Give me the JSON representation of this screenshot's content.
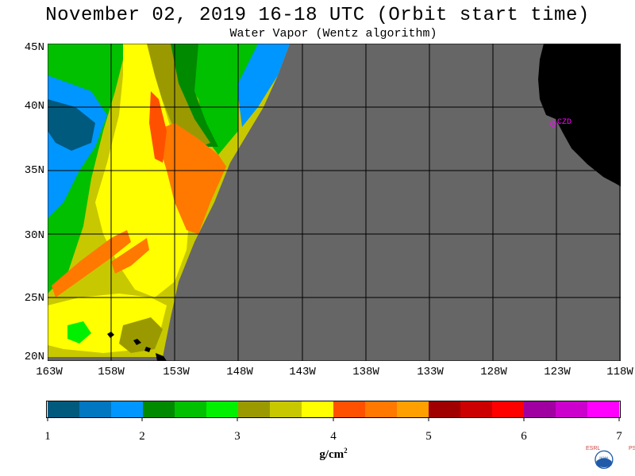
{
  "title": "November 02, 2019  16-18 UTC  (Orbit start time)",
  "subtitle": "Water Vapor (Wentz algorithm)",
  "map": {
    "lat_labels": [
      "45N",
      "40N",
      "35N",
      "30N",
      "25N",
      "20N"
    ],
    "lon_labels": [
      "163W",
      "158W",
      "153W",
      "148W",
      "143W",
      "138W",
      "133W",
      "128W",
      "123W",
      "118W"
    ],
    "extent": {
      "lon_min": -163,
      "lon_max": -118,
      "lat_min": 20,
      "lat_max": 45
    },
    "no_data_color": "#666666",
    "land_color": "#000000",
    "station_label": "CZD"
  },
  "colorbar": {
    "ticks": [
      "1",
      "2",
      "3",
      "4",
      "5",
      "6",
      "7"
    ],
    "unit": "g/cm",
    "unit_exp": "2",
    "colors": [
      "#005a7e",
      "#0077c0",
      "#0096ff",
      "#008a00",
      "#00c000",
      "#00f000",
      "#9a9a00",
      "#c8c800",
      "#ffff00",
      "#ff5000",
      "#ff7800",
      "#ffa000",
      "#a00000",
      "#cc0000",
      "#ff0000",
      "#a000a0",
      "#cc00cc",
      "#ff00ff"
    ]
  },
  "logo": {
    "left_text": "ESRL",
    "right_text": "PSD",
    "center_text": "NOAA"
  }
}
